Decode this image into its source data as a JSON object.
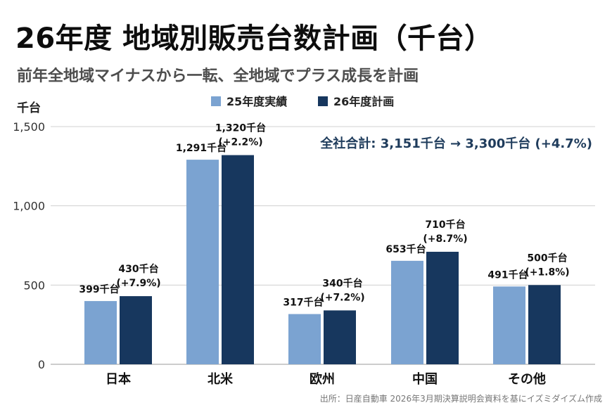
{
  "title": "26年度 地域別販売台数計画（千台）",
  "subtitle": "前年全地域マイナスから一転、全地域でプラス成長を計画",
  "source": "出所：日産自動車 2026年3月期決算説明会資料を基にイズミダイズム作成",
  "colors": {
    "series1": "#7ba3d1",
    "series2": "#17375e",
    "grid": "#d0d0d0",
    "annotation": "#1f3c5c"
  },
  "chart_data": {
    "type": "bar",
    "ylabel": "千台",
    "ylim": [
      0,
      1500
    ],
    "yticks": [
      0,
      500,
      1000,
      1500
    ],
    "ytick_labels": [
      "0",
      "500",
      "1,000",
      "1,500"
    ],
    "grid": true,
    "legend_position": "top-center",
    "categories": [
      "日本",
      "北米",
      "欧州",
      "中国",
      "その他"
    ],
    "series": [
      {
        "name": "25年度実績",
        "values": [
          399,
          1291,
          317,
          653,
          491
        ],
        "labels": [
          "399千台",
          "1,291千台",
          "317千台",
          "653千台",
          "491千台"
        ]
      },
      {
        "name": "26年度計画",
        "values": [
          430,
          1320,
          340,
          710,
          500
        ],
        "labels": [
          "430千台",
          "1,320千台",
          "340千台",
          "710千台",
          "500千台"
        ],
        "growth": [
          "(+7.9%)",
          "(+2.2%)",
          "(+7.2%)",
          "(+8.7%)",
          "(+1.8%)"
        ]
      }
    ],
    "annotation": "全社合計: 3,151千台 → 3,300千台 (+4.7%)"
  }
}
